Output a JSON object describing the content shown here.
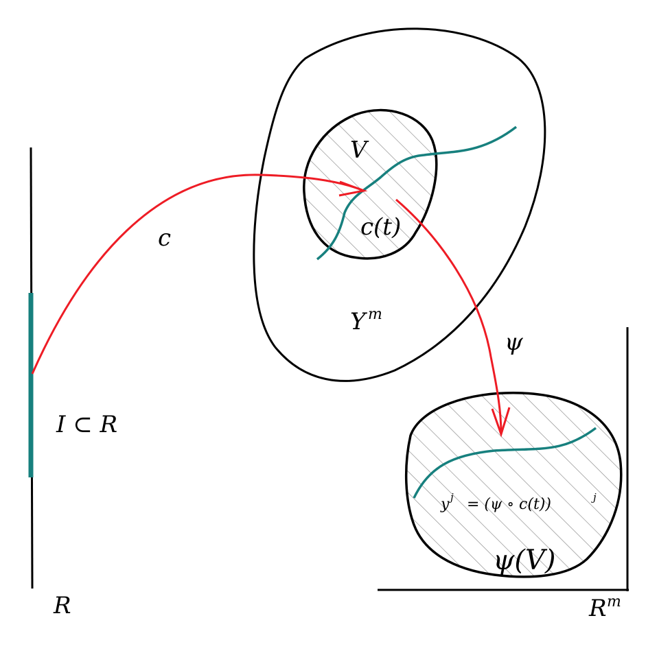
{
  "labels": {
    "real_line": "R",
    "interval": "I ⊂ R",
    "curve_map": "c",
    "manifold_base": "Y",
    "manifold_exp": "m",
    "chart_domain": "V",
    "curve_point": "c(t)",
    "chart_map": "ψ",
    "chart_image": "ψ(V)",
    "euclid_base": "R",
    "euclid_exp": "m",
    "coord_y": "y",
    "coord_j": "j",
    "coord_rhs": "= (ψ ∘ c(t))",
    "coord_rhs_exp": "j"
  },
  "colors": {
    "outline": "#000000",
    "curve": "#17807e",
    "arrow": "#ee1c25",
    "hatch": "#8a8a8a"
  }
}
